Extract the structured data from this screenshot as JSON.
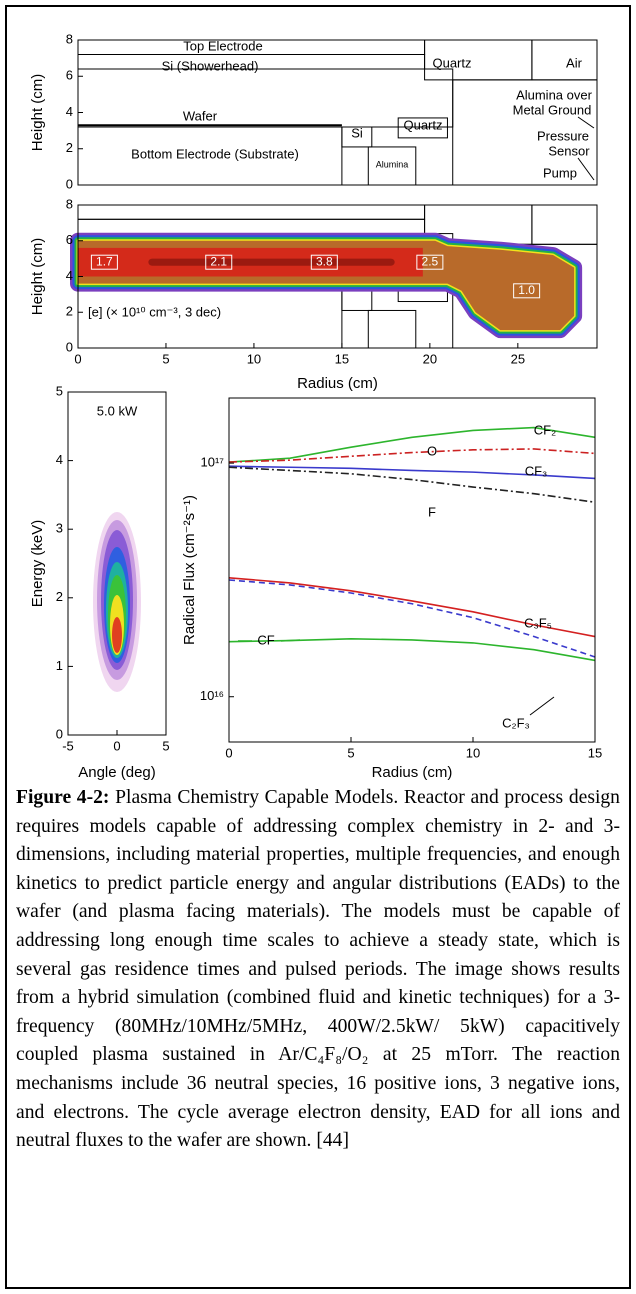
{
  "chart_data": [
    {
      "type": "diagram",
      "ylabel": "Height (cm)",
      "ylim": [
        0,
        8
      ],
      "yticks": [
        0,
        2,
        4,
        6,
        8
      ],
      "regions": [
        "Top Electrode",
        "Si (Showerhead)",
        "Quartz",
        "Air",
        "Alumina over",
        "Metal Ground",
        "Wafer",
        "Si",
        "Quartz",
        "Pressure",
        "Sensor",
        "Bottom Electrode (Substrate)",
        "Alumina",
        "Pump"
      ]
    },
    {
      "type": "heatmap",
      "ylabel": "Height (cm)",
      "xlabel": "Radius (cm)",
      "ylim": [
        0,
        8
      ],
      "yticks": [
        0,
        2,
        4,
        6,
        8
      ],
      "xlim": [
        0,
        29.5
      ],
      "xticks": [
        0,
        5,
        10,
        15,
        20,
        25
      ],
      "contour_labels": [
        "1.7",
        "2.1",
        "3.8",
        "2.5",
        "1.0"
      ],
      "annotation": "[e] (× 10¹⁰ cm⁻³, 3 dec)"
    },
    {
      "type": "heatmap",
      "ylabel": "Energy (keV)",
      "xlabel": "Angle (deg)",
      "ylim": [
        0,
        5
      ],
      "yticks": [
        0,
        1,
        2,
        3,
        4,
        5
      ],
      "xlim": [
        -5,
        5
      ],
      "xticks": [
        -5,
        0,
        5
      ],
      "annotation": "5.0 kW"
    },
    {
      "type": "line",
      "ylabel": "Radical Flux (cm⁻²s⁻¹)",
      "xlabel": "Radius (cm)",
      "log_y": true,
      "xlim": [
        0,
        15
      ],
      "xticks": [
        0,
        5,
        10,
        15
      ],
      "ylim": [
        6400000000000000.0,
        1.9e+17
      ],
      "yticks": [
        {
          "value": 1e+16,
          "label": "10¹⁶"
        },
        {
          "value": 1e+17,
          "label": "10¹⁷"
        }
      ],
      "x": [
        0,
        2.5,
        5,
        7.5,
        10,
        12.5,
        15
      ],
      "series": [
        {
          "name": "CF₂",
          "color": "#2db52d",
          "linestyle": "solid",
          "values": [
            1.01e+17,
            1.05e+17,
            1.17e+17,
            1.29e+17,
            1.38e+17,
            1.42e+17,
            1.29e+17
          ]
        },
        {
          "name": "O",
          "color": "#cc2222",
          "linestyle": "dashdot",
          "values": [
            1.01e+17,
            1.03e+17,
            1.07e+17,
            1.11e+17,
            1.14e+17,
            1.15e+17,
            1.1e+17
          ]
        },
        {
          "name": "CF₃",
          "color": "#3a3acc",
          "linestyle": "solid",
          "values": [
            9.7e+16,
            9.6e+16,
            9.5e+16,
            9.3e+16,
            9.15e+16,
            8.9e+16,
            8.6e+16
          ]
        },
        {
          "name": "F",
          "color": "#222222",
          "linestyle": "dashdot",
          "values": [
            9.6e+16,
            9.3e+16,
            9e+16,
            8.5e+16,
            7.9e+16,
            7.4e+16,
            6.8e+16
          ]
        },
        {
          "name": "C₃F₅",
          "color": "#d42020",
          "linestyle": "solid",
          "values": [
            3.23e+16,
            3.07e+16,
            2.84e+16,
            2.57e+16,
            2.31e+16,
            2.03e+16,
            1.81e+16
          ]
        },
        {
          "name": "C₂F₃",
          "color": "#3a3acc",
          "linestyle": "dashed",
          "values": [
            3.16e+16,
            3.01e+16,
            2.78e+16,
            2.5e+16,
            2.18e+16,
            1.81e+16,
            1.48e+16
          ]
        },
        {
          "name": "CF",
          "color": "#2db52d",
          "linestyle": "solid",
          "values": [
            1.72e+16,
            1.74e+16,
            1.77e+16,
            1.75e+16,
            1.7e+16,
            1.59e+16,
            1.43e+16
          ]
        }
      ]
    }
  ],
  "caption": {
    "label": "Figure 4-2:",
    "text": "Plasma Chemistry Capable Models. Reactor and process design requires models capable of addressing complex chemistry in 2- and 3-dimensions, including material properties, multiple frequencies, and enough kinetics to predict particle energy and angular distributions (EADs) to the wafer (and plasma facing materials).  The models must be capable of addressing long enough time scales to achieve a steady state, which is several gas residence times and pulsed periods.  The image shows results from a hybrid simulation (combined fluid and kinetic techniques) for a 3-frequency (80MHz/10MHz/5MHz, 400W/2.5kW/ 5kW) capacitively coupled plasma sustained in Ar/C₄F₈/O₂ at 25 mTorr.  The reaction mechanisms include 36 neutral species, 16 positive ions, 3 negative ions, and electrons. The cycle average electron density, EAD for all ions and neutral fluxes to the wafer are shown. [44]"
  }
}
